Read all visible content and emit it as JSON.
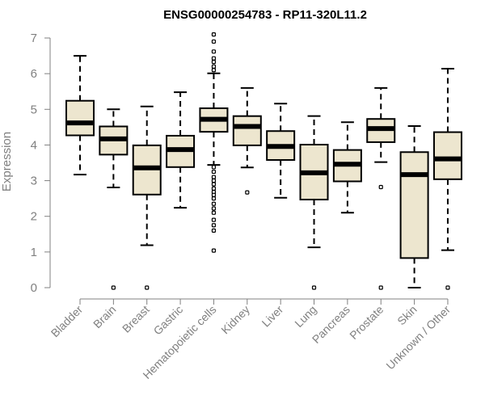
{
  "chart_data": {
    "type": "boxplot",
    "title": "ENSG00000254783 - RP11-320L11.2",
    "ylabel": "Expression",
    "xlabel": "",
    "ylim": [
      0,
      7
    ],
    "yticks": [
      "0",
      "1",
      "2",
      "3",
      "4",
      "5",
      "6",
      "7"
    ],
    "box_fill": "#ede6cf",
    "categories": [
      "Bladder",
      "Brain",
      "Breast",
      "Gastric",
      "Hematopoietic cells",
      "Kidney",
      "Liver",
      "Lung",
      "Pancreas",
      "Prostate",
      "Skin",
      "Unknown / Other"
    ],
    "boxes": [
      {
        "whisker_low": 3.17,
        "q1": 4.27,
        "median": 4.62,
        "q3": 5.24,
        "whisker_high": 6.5,
        "outliers": []
      },
      {
        "whisker_low": 2.81,
        "q1": 3.73,
        "median": 4.17,
        "q3": 4.52,
        "whisker_high": 5.0,
        "outliers": [
          0.0
        ]
      },
      {
        "whisker_low": 1.19,
        "q1": 2.61,
        "median": 3.36,
        "q3": 3.99,
        "whisker_high": 5.08,
        "outliers": [
          0.0
        ]
      },
      {
        "whisker_low": 2.24,
        "q1": 3.38,
        "median": 3.87,
        "q3": 4.26,
        "whisker_high": 5.48,
        "outliers": []
      },
      {
        "whisker_low": 3.44,
        "q1": 4.37,
        "median": 4.72,
        "q3": 5.03,
        "whisker_high": 6.01,
        "outliers": [
          7.1,
          6.9,
          6.62,
          6.43,
          6.33,
          6.2,
          6.1,
          3.38,
          3.25,
          3.1,
          3.0,
          2.9,
          2.78,
          2.68,
          2.6,
          2.5,
          2.35,
          2.22,
          2.1,
          1.9,
          1.75,
          1.6,
          1.04
        ]
      },
      {
        "whisker_low": 3.37,
        "q1": 3.99,
        "median": 4.52,
        "q3": 4.81,
        "whisker_high": 5.6,
        "outliers": [
          2.67
        ]
      },
      {
        "whisker_low": 2.52,
        "q1": 3.58,
        "median": 3.96,
        "q3": 4.39,
        "whisker_high": 5.16,
        "outliers": []
      },
      {
        "whisker_low": 1.13,
        "q1": 2.47,
        "median": 3.22,
        "q3": 4.01,
        "whisker_high": 4.81,
        "outliers": [
          0.0
        ]
      },
      {
        "whisker_low": 2.1,
        "q1": 2.98,
        "median": 3.46,
        "q3": 3.86,
        "whisker_high": 4.64,
        "outliers": []
      },
      {
        "whisker_low": 3.52,
        "q1": 4.08,
        "median": 4.46,
        "q3": 4.73,
        "whisker_high": 5.6,
        "outliers": [
          2.82,
          0.0
        ]
      },
      {
        "whisker_low": 0.0,
        "q1": 0.83,
        "median": 3.17,
        "q3": 3.8,
        "whisker_high": 4.53,
        "outliers": []
      },
      {
        "whisker_low": 1.05,
        "q1": 3.04,
        "median": 3.61,
        "q3": 4.36,
        "whisker_high": 6.14,
        "outliers": [
          0.0
        ]
      }
    ]
  }
}
